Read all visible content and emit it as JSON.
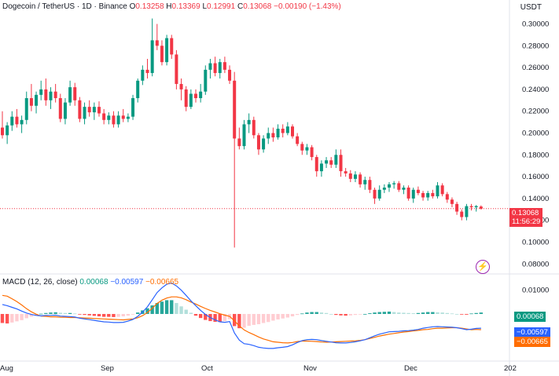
{
  "header": {
    "symbol": "Dogecoin / TetherUS · 1D · Binance",
    "open_label": "O",
    "open": "0.13258",
    "high_label": "H",
    "high": "0.13369",
    "low_label": "L",
    "low": "0.12991",
    "close_label": "C",
    "close": "0.13068",
    "change": "−0.00190 (−1.43%)",
    "currency": "USDT"
  },
  "price_tags": {
    "last_price": "0.13068",
    "countdown": "11:56:29"
  },
  "macd": {
    "title": "MACD (12, 26, close)",
    "hist_value": "0.00068",
    "macd_value": "−0.00597",
    "signal_value": "−0.00665",
    "tags": {
      "hist": "0.00068",
      "macd": "−0.00597",
      "signal": "−0.00665"
    }
  },
  "colors": {
    "up": "#089981",
    "down": "#f23645",
    "macd": "#2962ff",
    "signal": "#ff6d00",
    "hist_up_strong": "#26a69a",
    "hist_up_weak": "#b2dfdb",
    "hist_down_strong": "#ff5252",
    "hist_down_weak": "#ffcdd2"
  },
  "icons": {
    "replay": "lightning-bolt-icon"
  },
  "chart_data": [
    {
      "type": "candlestick",
      "title": "Dogecoin / TetherUS · 1D · Binance",
      "y_ticks": [
        "0.30000",
        "0.28000",
        "0.26000",
        "0.24000",
        "0.22000",
        "0.20000",
        "0.18000",
        "0.16000",
        "0.14000",
        "0.12000",
        "0.10000",
        "0.08000"
      ],
      "ylim": [
        0.073,
        0.309
      ],
      "x_ticks": [
        "Aug",
        "Sep",
        "Oct",
        "Nov",
        "Dec",
        "202"
      ],
      "y_axis_side": "right",
      "grid": false,
      "candles": [
        [
          0.205,
          0.22,
          0.195,
          0.198
        ],
        [
          0.198,
          0.21,
          0.19,
          0.207
        ],
        [
          0.207,
          0.22,
          0.202,
          0.215
        ],
        [
          0.215,
          0.222,
          0.205,
          0.208
        ],
        [
          0.208,
          0.216,
          0.2,
          0.212
        ],
        [
          0.212,
          0.238,
          0.208,
          0.232
        ],
        [
          0.232,
          0.245,
          0.22,
          0.225
        ],
        [
          0.225,
          0.238,
          0.218,
          0.235
        ],
        [
          0.235,
          0.248,
          0.23,
          0.24
        ],
        [
          0.24,
          0.25,
          0.225,
          0.23
        ],
        [
          0.23,
          0.242,
          0.222,
          0.238
        ],
        [
          0.238,
          0.245,
          0.228,
          0.232
        ],
        [
          0.232,
          0.236,
          0.21,
          0.213
        ],
        [
          0.213,
          0.232,
          0.208,
          0.228
        ],
        [
          0.228,
          0.248,
          0.225,
          0.242
        ],
        [
          0.242,
          0.246,
          0.225,
          0.23
        ],
        [
          0.23,
          0.233,
          0.21,
          0.213
        ],
        [
          0.213,
          0.228,
          0.208,
          0.224
        ],
        [
          0.224,
          0.23,
          0.215,
          0.219
        ],
        [
          0.219,
          0.228,
          0.212,
          0.224
        ],
        [
          0.224,
          0.229,
          0.215,
          0.218
        ],
        [
          0.218,
          0.222,
          0.208,
          0.212
        ],
        [
          0.212,
          0.219,
          0.208,
          0.216
        ],
        [
          0.216,
          0.22,
          0.205,
          0.208
        ],
        [
          0.208,
          0.22,
          0.205,
          0.216
        ],
        [
          0.216,
          0.222,
          0.21,
          0.213
        ],
        [
          0.213,
          0.218,
          0.21,
          0.215
        ],
        [
          0.215,
          0.235,
          0.212,
          0.232
        ],
        [
          0.232,
          0.25,
          0.228,
          0.248
        ],
        [
          0.248,
          0.262,
          0.244,
          0.258
        ],
        [
          0.258,
          0.268,
          0.25,
          0.255
        ],
        [
          0.255,
          0.305,
          0.252,
          0.285
        ],
        [
          0.285,
          0.3,
          0.276,
          0.28
        ],
        [
          0.28,
          0.285,
          0.262,
          0.265
        ],
        [
          0.265,
          0.29,
          0.262,
          0.287
        ],
        [
          0.287,
          0.29,
          0.268,
          0.272
        ],
        [
          0.272,
          0.276,
          0.24,
          0.245
        ],
        [
          0.245,
          0.25,
          0.23,
          0.24
        ],
        [
          0.24,
          0.243,
          0.22,
          0.224
        ],
        [
          0.224,
          0.24,
          0.222,
          0.236
        ],
        [
          0.236,
          0.24,
          0.228,
          0.232
        ],
        [
          0.232,
          0.245,
          0.228,
          0.238
        ],
        [
          0.238,
          0.262,
          0.235,
          0.258
        ],
        [
          0.258,
          0.268,
          0.25,
          0.264
        ],
        [
          0.264,
          0.27,
          0.252,
          0.255
        ],
        [
          0.255,
          0.268,
          0.25,
          0.265
        ],
        [
          0.265,
          0.27,
          0.255,
          0.258
        ],
        [
          0.258,
          0.262,
          0.245,
          0.248
        ],
        [
          0.248,
          0.256,
          0.095,
          0.195
        ],
        [
          0.195,
          0.205,
          0.185,
          0.188
        ],
        [
          0.188,
          0.212,
          0.185,
          0.208
        ],
        [
          0.208,
          0.218,
          0.2,
          0.212
        ],
        [
          0.212,
          0.215,
          0.195,
          0.198
        ],
        [
          0.198,
          0.2,
          0.18,
          0.185
        ],
        [
          0.185,
          0.198,
          0.182,
          0.195
        ],
        [
          0.195,
          0.205,
          0.19,
          0.2
        ],
        [
          0.2,
          0.205,
          0.192,
          0.196
        ],
        [
          0.196,
          0.208,
          0.194,
          0.204
        ],
        [
          0.204,
          0.208,
          0.196,
          0.2
        ],
        [
          0.2,
          0.21,
          0.198,
          0.206
        ],
        [
          0.206,
          0.208,
          0.195,
          0.197
        ],
        [
          0.197,
          0.2,
          0.188,
          0.19
        ],
        [
          0.19,
          0.192,
          0.18,
          0.184
        ],
        [
          0.184,
          0.19,
          0.18,
          0.187
        ],
        [
          0.187,
          0.189,
          0.175,
          0.178
        ],
        [
          0.178,
          0.18,
          0.16,
          0.165
        ],
        [
          0.165,
          0.175,
          0.16,
          0.172
        ],
        [
          0.172,
          0.178,
          0.168,
          0.175
        ],
        [
          0.175,
          0.178,
          0.168,
          0.171
        ],
        [
          0.171,
          0.185,
          0.168,
          0.18
        ],
        [
          0.18,
          0.185,
          0.16,
          0.165
        ],
        [
          0.165,
          0.168,
          0.16,
          0.163
        ],
        [
          0.163,
          0.166,
          0.155,
          0.158
        ],
        [
          0.158,
          0.165,
          0.155,
          0.162
        ],
        [
          0.162,
          0.164,
          0.15,
          0.153
        ],
        [
          0.153,
          0.16,
          0.148,
          0.157
        ],
        [
          0.157,
          0.16,
          0.145,
          0.148
        ],
        [
          0.148,
          0.15,
          0.135,
          0.14
        ],
        [
          0.14,
          0.152,
          0.138,
          0.148
        ],
        [
          0.148,
          0.153,
          0.145,
          0.15
        ],
        [
          0.15,
          0.155,
          0.146,
          0.153
        ],
        [
          0.153,
          0.156,
          0.149,
          0.154
        ],
        [
          0.154,
          0.156,
          0.146,
          0.148
        ],
        [
          0.148,
          0.152,
          0.144,
          0.15
        ],
        [
          0.15,
          0.152,
          0.138,
          0.14
        ],
        [
          0.14,
          0.15,
          0.136,
          0.148
        ],
        [
          0.148,
          0.151,
          0.143,
          0.145
        ],
        [
          0.145,
          0.147,
          0.138,
          0.141
        ],
        [
          0.141,
          0.147,
          0.138,
          0.145
        ],
        [
          0.145,
          0.148,
          0.14,
          0.142
        ],
        [
          0.142,
          0.155,
          0.14,
          0.152
        ],
        [
          0.152,
          0.154,
          0.142,
          0.144
        ],
        [
          0.144,
          0.146,
          0.136,
          0.139
        ],
        [
          0.139,
          0.141,
          0.132,
          0.135
        ],
        [
          0.135,
          0.137,
          0.125,
          0.128
        ],
        [
          0.128,
          0.13,
          0.12,
          0.123
        ],
        [
          0.123,
          0.135,
          0.12,
          0.133
        ],
        [
          0.133,
          0.135,
          0.129,
          0.132
        ],
        [
          0.132,
          0.134,
          0.128,
          0.133
        ],
        [
          0.1326,
          0.1337,
          0.1299,
          0.1307
        ]
      ]
    },
    {
      "type": "macd",
      "title": "MACD (12, 26, close)",
      "y_ticks": [
        "0.01000"
      ],
      "ylim": [
        -0.0185,
        0.0165
      ],
      "histogram": [
        -0.0038,
        -0.004,
        -0.0036,
        -0.0031,
        -0.0026,
        -0.0018,
        -0.0011,
        -0.0005,
        0.0001,
        0.0004,
        0.0006,
        0.0007,
        0.0005,
        0.0004,
        0.0004,
        0.0002,
        -0.0002,
        -0.0004,
        -0.0006,
        -0.0008,
        -0.001,
        -0.0012,
        -0.0012,
        -0.0013,
        -0.0012,
        -0.001,
        -0.0007,
        -0.0002,
        0.0006,
        0.0015,
        0.0024,
        0.0036,
        0.0046,
        0.0052,
        0.0058,
        0.0058,
        0.0046,
        0.0032,
        0.0018,
        0.0005,
        -0.0007,
        -0.0017,
        -0.0025,
        -0.003,
        -0.0033,
        -0.0034,
        -0.003,
        -0.0022,
        -0.0051,
        -0.006,
        -0.0058,
        -0.005,
        -0.0046,
        -0.0043,
        -0.0038,
        -0.0034,
        -0.0028,
        -0.0023,
        -0.0019,
        -0.0015,
        -0.001,
        -0.0004,
        0.0002,
        0.0006,
        0.0008,
        0.0008,
        0.0006,
        0.0004,
        0.0,
        -0.0004,
        -0.0006,
        -0.0007,
        -0.0006,
        -0.0004,
        -0.0002,
        0.0,
        0.0003,
        0.0006,
        0.0008,
        0.0009,
        0.001,
        0.0008,
        0.0006,
        0.0005,
        0.0004,
        0.0003,
        0.0004,
        0.0006,
        0.0008,
        0.0008,
        0.0007,
        0.0006,
        0.0004,
        0.0002,
        0.0,
        -0.0002,
        -0.0003,
        0.0002,
        0.0004,
        0.0006
      ],
      "macd_line": [
        0.004,
        0.0035,
        0.0028,
        0.0021,
        0.0012,
        0.0004,
        -0.0002,
        -0.0006,
        -0.0008,
        -0.0006,
        -0.0006,
        -0.0005,
        -0.0009,
        -0.001,
        -0.0011,
        -0.0013,
        -0.0018,
        -0.0021,
        -0.0024,
        -0.0027,
        -0.003,
        -0.0033,
        -0.0034,
        -0.0036,
        -0.0036,
        -0.0035,
        -0.003,
        -0.0023,
        -0.001,
        0.0008,
        0.003,
        0.006,
        0.009,
        0.011,
        0.0125,
        0.013,
        0.0118,
        0.01,
        0.0078,
        0.0055,
        0.0035,
        0.0015,
        -0.0002,
        -0.0015,
        -0.0025,
        -0.0033,
        -0.0035,
        -0.0032,
        -0.008,
        -0.011,
        -0.0125,
        -0.0128,
        -0.0133,
        -0.014,
        -0.0143,
        -0.0145,
        -0.0145,
        -0.0142,
        -0.014,
        -0.0137,
        -0.013,
        -0.012,
        -0.0112,
        -0.0108,
        -0.0107,
        -0.0108,
        -0.0112,
        -0.0115,
        -0.0118,
        -0.0121,
        -0.0122,
        -0.0122,
        -0.012,
        -0.0117,
        -0.0113,
        -0.0108,
        -0.01,
        -0.0092,
        -0.0085,
        -0.008,
        -0.0075,
        -0.0074,
        -0.0073,
        -0.0071,
        -0.007,
        -0.0068,
        -0.0065,
        -0.006,
        -0.0057,
        -0.0054,
        -0.0053,
        -0.0054,
        -0.0055,
        -0.0056,
        -0.0058,
        -0.0062,
        -0.0066,
        -0.0064,
        -0.0061,
        -0.006
      ],
      "signal_line": [
        0.0078,
        0.0075,
        0.0064,
        0.0052,
        0.0038,
        0.0022,
        0.0009,
        -0.0001,
        -0.0009,
        -0.001,
        -0.0012,
        -0.0012,
        -0.0014,
        -0.0014,
        -0.0015,
        -0.0015,
        -0.0016,
        -0.0017,
        -0.0018,
        -0.0019,
        -0.002,
        -0.0021,
        -0.0022,
        -0.0023,
        -0.0024,
        -0.0025,
        -0.0023,
        -0.0021,
        -0.0016,
        -0.0007,
        0.0006,
        0.0024,
        0.0044,
        0.0058,
        0.0067,
        0.0072,
        0.0072,
        0.0068,
        0.006,
        0.005,
        0.0042,
        0.0032,
        0.0023,
        0.0015,
        0.0008,
        0.0001,
        -0.0005,
        -0.001,
        -0.0029,
        -0.005,
        -0.0067,
        -0.0078,
        -0.0087,
        -0.0097,
        -0.0105,
        -0.0111,
        -0.0117,
        -0.0119,
        -0.0121,
        -0.0122,
        -0.012,
        -0.0116,
        -0.0114,
        -0.0114,
        -0.0115,
        -0.0116,
        -0.0118,
        -0.0119,
        -0.0118,
        -0.0117,
        -0.0116,
        -0.0115,
        -0.0114,
        -0.0113,
        -0.0111,
        -0.0108,
        -0.0103,
        -0.0098,
        -0.0093,
        -0.0089,
        -0.0085,
        -0.0082,
        -0.0079,
        -0.0076,
        -0.0074,
        -0.0071,
        -0.0069,
        -0.0066,
        -0.0065,
        -0.0062,
        -0.006,
        -0.006,
        -0.0059,
        -0.0058,
        -0.0058,
        -0.006,
        -0.0063,
        -0.0066,
        -0.0065,
        -0.0066
      ]
    }
  ]
}
